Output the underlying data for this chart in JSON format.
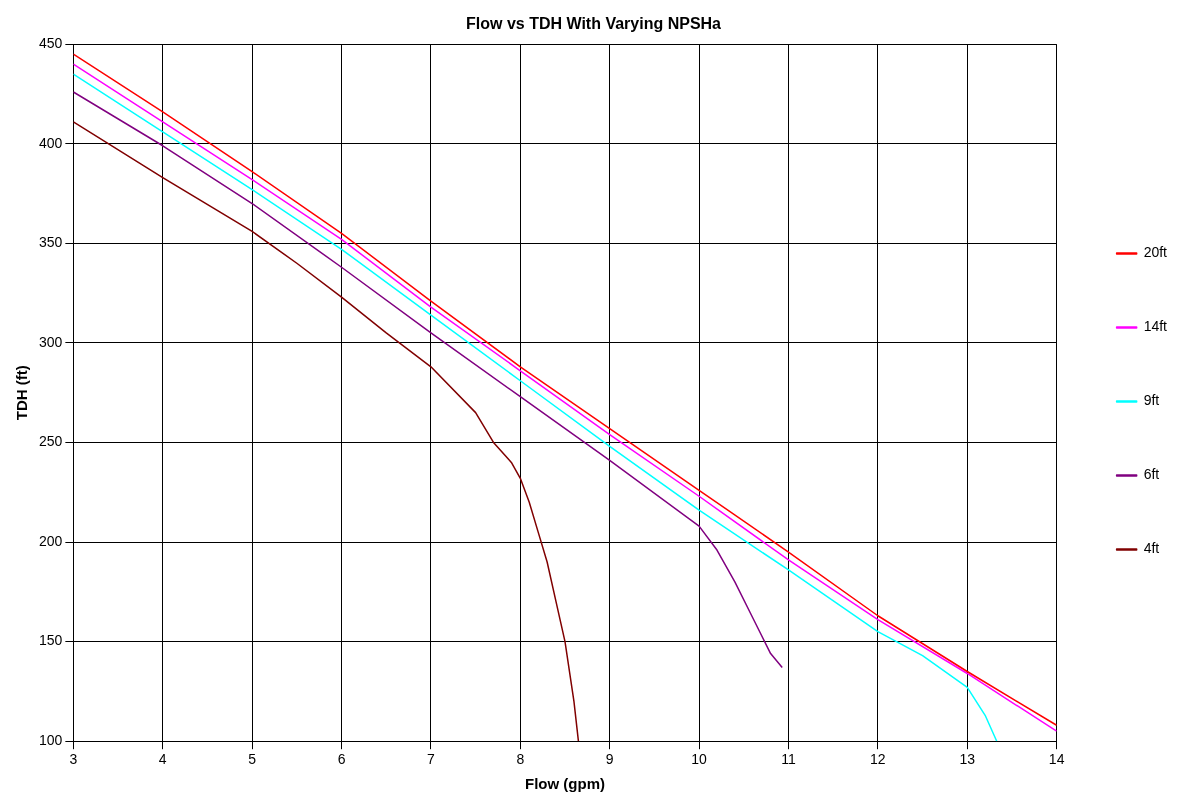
{
  "chart_data": {
    "type": "line",
    "title": "Flow vs TDH With Varying NPSHa",
    "xlabel": "Flow (gpm)",
    "ylabel": "TDH (ft)",
    "xlim": [
      3,
      14
    ],
    "xticks": [
      3,
      4,
      5,
      6,
      7,
      8,
      9,
      10,
      11,
      12,
      13,
      14
    ],
    "ylim": [
      100,
      450
    ],
    "yticks": [
      100,
      150,
      200,
      250,
      300,
      350,
      400,
      450
    ],
    "grid": true,
    "legend": "right",
    "marker": "none",
    "line_style": "solid",
    "series": [
      {
        "name": "20ft",
        "color": "#ff0000",
        "x": [
          3,
          4,
          5,
          6,
          7,
          8,
          9,
          10,
          11,
          12,
          13,
          14
        ],
        "values": [
          445,
          416,
          386,
          355,
          321,
          288,
          257,
          226,
          195,
          163,
          135,
          108
        ]
      },
      {
        "name": "14ft",
        "color": "#ff00ff",
        "x": [
          3,
          4,
          5,
          6,
          7,
          8,
          9,
          10,
          11,
          12,
          13,
          14
        ],
        "values": [
          440,
          411,
          382,
          352,
          318,
          286,
          254,
          223,
          191,
          161,
          134,
          105
        ]
      },
      {
        "name": "9ft",
        "color": "#00ffff",
        "x": [
          3,
          4,
          5,
          6,
          7,
          8,
          9,
          10,
          11,
          12,
          12.5,
          13,
          13.2,
          13.33
        ],
        "values": [
          435,
          406,
          377,
          347,
          314,
          281,
          248,
          216,
          186,
          155,
          143,
          127,
          113,
          100
        ]
      },
      {
        "name": "6ft",
        "color": "#800080",
        "x": [
          3,
          4,
          5,
          6,
          7,
          8,
          9,
          10,
          10.2,
          10.4,
          10.6,
          10.8,
          10.93
        ],
        "values": [
          426,
          399,
          370,
          338,
          305,
          273,
          241,
          208,
          196,
          180,
          162,
          144,
          137
        ]
      },
      {
        "name": "4ft",
        "color": "#800000",
        "x": [
          3,
          4,
          5,
          5.5,
          6,
          6.5,
          7,
          7.5,
          7.7,
          7.9,
          8,
          8.1,
          8.2,
          8.3,
          8.4,
          8.5,
          8.6,
          8.65
        ],
        "values": [
          411,
          383,
          356,
          340,
          323,
          305,
          288,
          265,
          250,
          240,
          232,
          220,
          205,
          190,
          170,
          150,
          120,
          100
        ]
      }
    ]
  }
}
